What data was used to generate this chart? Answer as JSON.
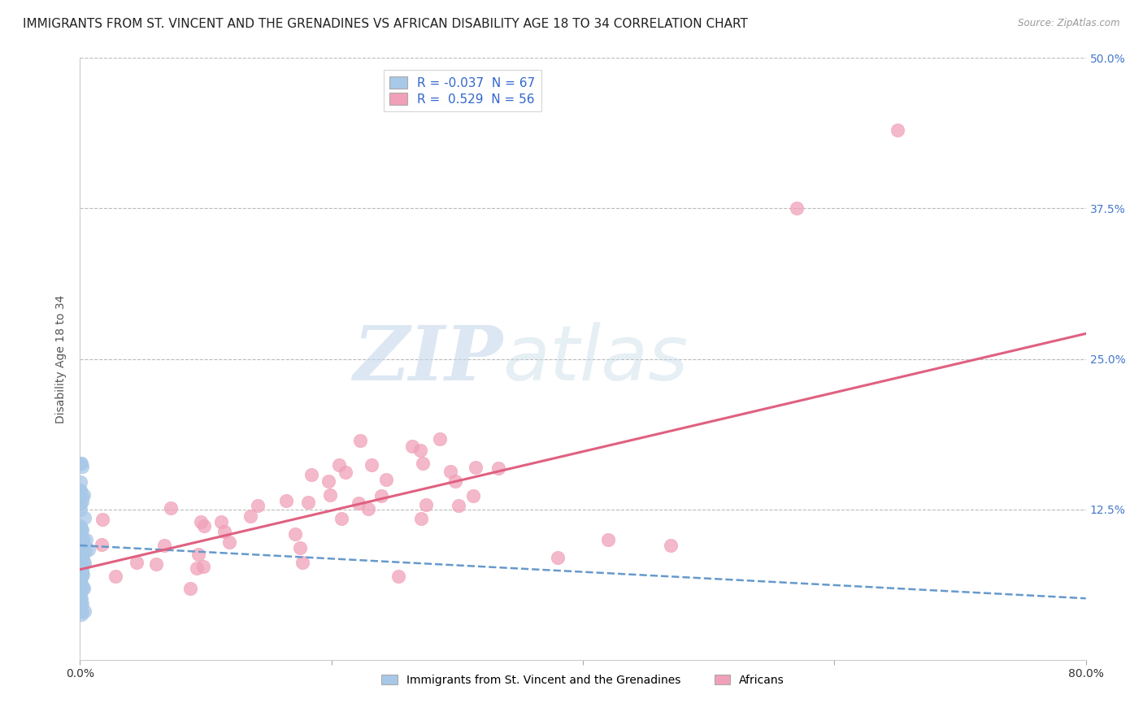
{
  "title": "IMMIGRANTS FROM ST. VINCENT AND THE GRENADINES VS AFRICAN DISABILITY AGE 18 TO 34 CORRELATION CHART",
  "source": "Source: ZipAtlas.com",
  "ylabel": "Disability Age 18 to 34",
  "legend_label_blue": "Immigrants from St. Vincent and the Grenadines",
  "legend_label_pink": "Africans",
  "R_blue": -0.037,
  "N_blue": 67,
  "R_pink": 0.529,
  "N_pink": 56,
  "xlim": [
    0.0,
    0.8
  ],
  "ylim": [
    0.0,
    0.5
  ],
  "xticks": [
    0.0,
    0.2,
    0.4,
    0.6,
    0.8
  ],
  "yticks": [
    0.0,
    0.125,
    0.25,
    0.375,
    0.5
  ],
  "xtick_labels": [
    "0.0%",
    "",
    "",
    "",
    "80.0%"
  ],
  "ytick_labels_right": [
    "",
    "12.5%",
    "25.0%",
    "37.5%",
    "50.0%"
  ],
  "color_blue": "#a8c8e8",
  "color_pink": "#f0a0b8",
  "line_color_blue": "#6699cc",
  "line_color_pink": "#e06080",
  "background_color": "#ffffff",
  "watermark_zip": "ZIP",
  "watermark_atlas": "atlas",
  "title_fontsize": 11,
  "axis_label_fontsize": 10,
  "tick_fontsize": 10,
  "blue_intercept": 0.095,
  "blue_slope": -0.055,
  "pink_intercept": 0.075,
  "pink_slope": 0.245
}
